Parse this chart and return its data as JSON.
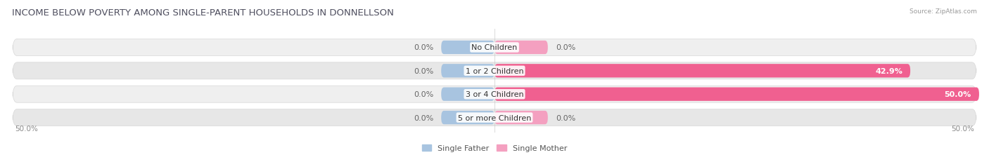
{
  "title": "INCOME BELOW POVERTY AMONG SINGLE-PARENT HOUSEHOLDS IN DONNELLSON",
  "source": "Source: ZipAtlas.com",
  "categories": [
    "No Children",
    "1 or 2 Children",
    "3 or 4 Children",
    "5 or more Children"
  ],
  "single_father": [
    0.0,
    0.0,
    0.0,
    0.0
  ],
  "single_mother": [
    0.0,
    42.9,
    50.0,
    0.0
  ],
  "father_color": "#a8c4e0",
  "mother_color_light": "#f4a0c0",
  "mother_color_strong": "#f06090",
  "x_min": -50.0,
  "x_max": 50.0,
  "father_stub": 5.5,
  "mother_stub": 5.5,
  "row_bg_even": "#f0f0f0",
  "row_bg_odd": "#e8e8e8",
  "axis_label_left": "50.0%",
  "axis_label_right": "50.0%",
  "legend_father": "Single Father",
  "legend_mother": "Single Mother",
  "title_fontsize": 9.5,
  "label_fontsize": 8,
  "category_fontsize": 8,
  "value_label_color_inside": "#ffffff",
  "value_label_color_outside": "#666666"
}
